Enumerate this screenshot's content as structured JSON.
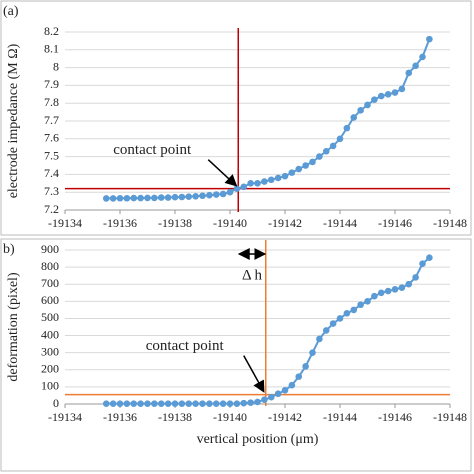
{
  "chart_data": [
    {
      "type": "line",
      "panel_label": "(a)",
      "ylabel": "electrode impedance (M Ω)",
      "x": [
        -19135.5,
        -19135.75,
        -19136,
        -19136.25,
        -19136.5,
        -19136.75,
        -19137,
        -19137.25,
        -19137.5,
        -19137.75,
        -19138,
        -19138.25,
        -19138.5,
        -19138.75,
        -19139,
        -19139.25,
        -19139.5,
        -19139.75,
        -19140,
        -19140.25,
        -19140.5,
        -19140.75,
        -19141,
        -19141.25,
        -19141.5,
        -19141.75,
        -19142,
        -19142.25,
        -19142.5,
        -19142.75,
        -19143,
        -19143.25,
        -19143.5,
        -19143.75,
        -19144,
        -19144.25,
        -19144.5,
        -19144.75,
        -19145,
        -19145.25,
        -19145.5,
        -19145.75,
        -19146,
        -19146.25,
        -19146.5,
        -19146.75,
        -19147,
        -19147.25
      ],
      "values": [
        7.265,
        7.265,
        7.266,
        7.266,
        7.267,
        7.267,
        7.268,
        7.268,
        7.27,
        7.27,
        7.272,
        7.273,
        7.275,
        7.277,
        7.28,
        7.283,
        7.287,
        7.29,
        7.3,
        7.32,
        7.33,
        7.35,
        7.35,
        7.36,
        7.37,
        7.38,
        7.39,
        7.41,
        7.43,
        7.45,
        7.47,
        7.5,
        7.53,
        7.56,
        7.6,
        7.66,
        7.72,
        7.76,
        7.79,
        7.82,
        7.84,
        7.85,
        7.86,
        7.88,
        7.97,
        8.01,
        8.06,
        8.16
      ],
      "color": "#5b9bd5",
      "ref_color": "#c00000",
      "vline": -19140.3,
      "hline": 7.32,
      "annotation": "contact point",
      "xlim": [
        -19134,
        -19148
      ],
      "xticks": [
        -19134,
        -19136,
        -19138,
        -19140,
        -19142,
        -19144,
        -19146,
        -19148
      ],
      "ylim": [
        7.2,
        8.2
      ],
      "yticks": [
        7.2,
        7.3,
        7.4,
        7.5,
        7.6,
        7.7,
        7.8,
        7.9,
        8,
        8.1,
        8.2
      ],
      "grid": true
    },
    {
      "type": "line",
      "panel_label": "b)",
      "ylabel": "deformation (pixel)",
      "xlabel": "vertical position (μm)",
      "x": [
        -19135.5,
        -19135.75,
        -19136,
        -19136.25,
        -19136.5,
        -19136.75,
        -19137,
        -19137.25,
        -19137.5,
        -19137.75,
        -19138,
        -19138.25,
        -19138.5,
        -19138.75,
        -19139,
        -19139.25,
        -19139.5,
        -19139.75,
        -19140,
        -19140.25,
        -19140.5,
        -19140.75,
        -19141,
        -19141.25,
        -19141.5,
        -19141.75,
        -19142,
        -19142.25,
        -19142.5,
        -19142.75,
        -19143,
        -19143.25,
        -19143.5,
        -19143.75,
        -19144,
        -19144.25,
        -19144.5,
        -19144.75,
        -19145,
        -19145.25,
        -19145.5,
        -19145.75,
        -19146,
        -19146.25,
        -19146.5,
        -19146.75,
        -19147,
        -19147.25
      ],
      "values": [
        2,
        2,
        2,
        2,
        2,
        2,
        2,
        2,
        2,
        2,
        2,
        2,
        2,
        2,
        2,
        2,
        2,
        2,
        2,
        2,
        5,
        8,
        12,
        25,
        40,
        60,
        80,
        110,
        160,
        220,
        300,
        380,
        430,
        470,
        500,
        530,
        550,
        580,
        600,
        630,
        650,
        660,
        670,
        680,
        700,
        740,
        820,
        855
      ],
      "color": "#5b9bd5",
      "ref_color": "#ed7d31",
      "vline": -19141.3,
      "hline": 55,
      "annotation": "contact point",
      "delta_label": "Δ h",
      "xlim": [
        -19134,
        -19148
      ],
      "xticks": [
        -19134,
        -19136,
        -19138,
        -19140,
        -19142,
        -19144,
        -19146,
        -19148
      ],
      "ylim": [
        0,
        900
      ],
      "yticks": [
        0,
        100,
        200,
        300,
        400,
        500,
        600,
        700,
        800,
        900
      ],
      "grid": true
    }
  ]
}
